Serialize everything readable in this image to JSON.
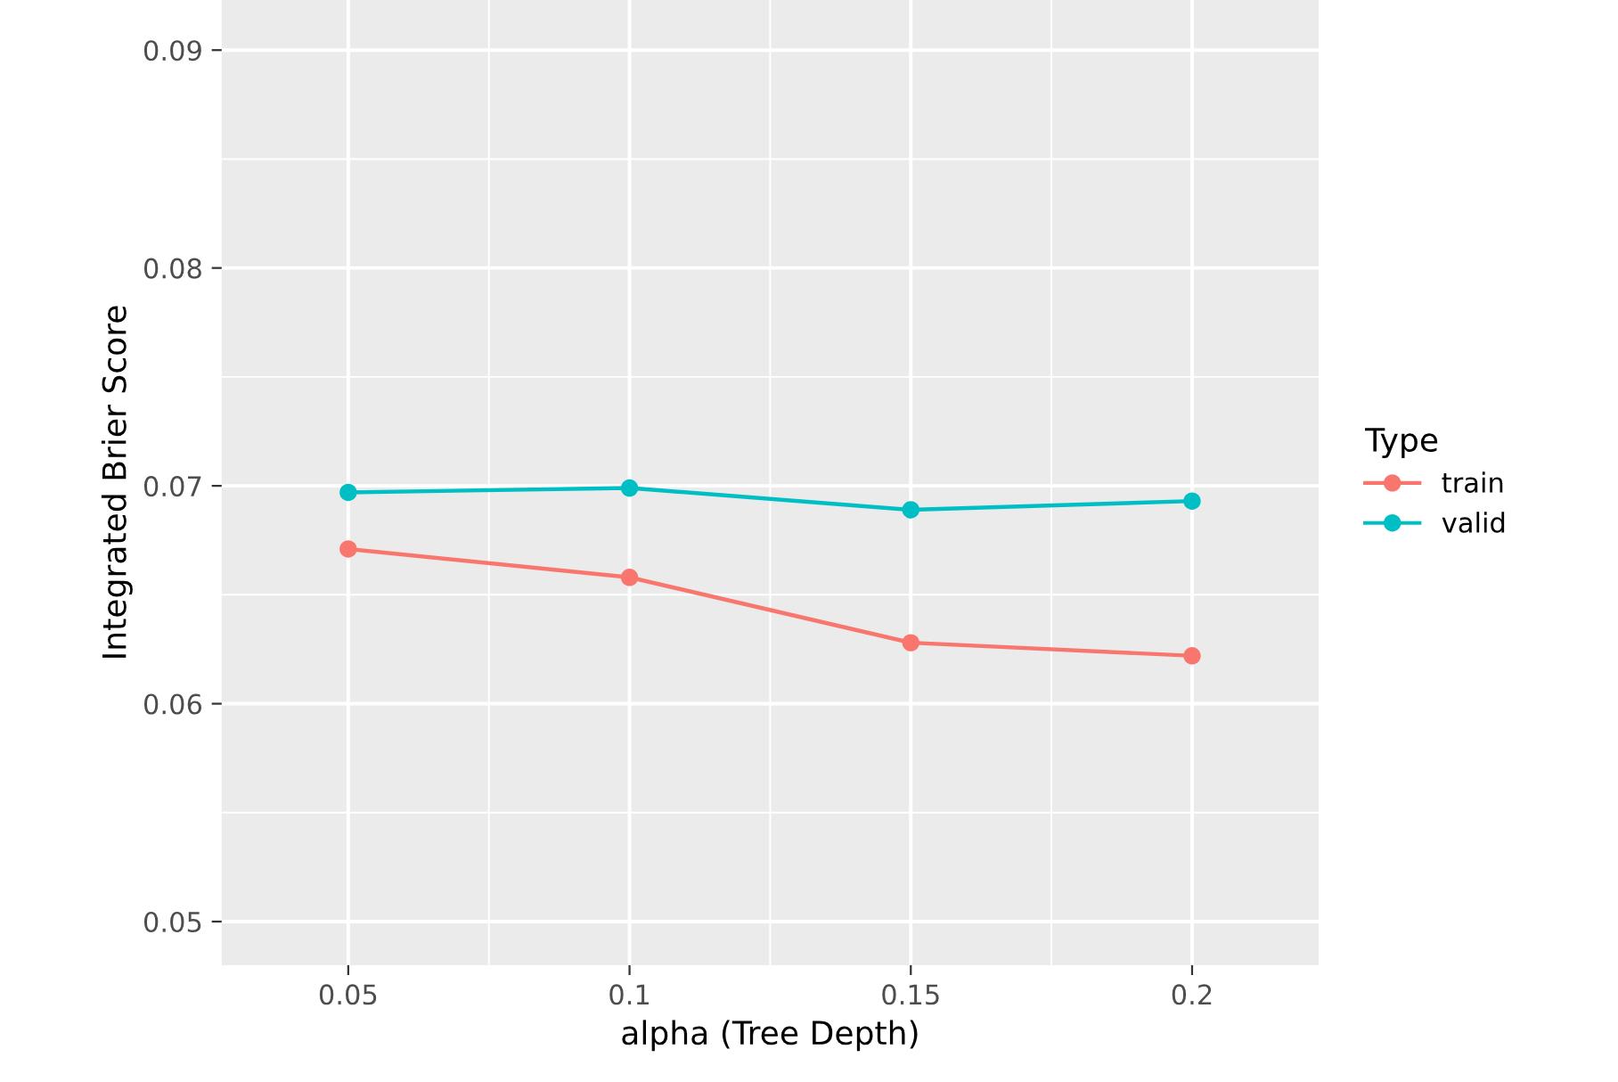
{
  "chart_data": {
    "type": "line",
    "x": [
      0.05,
      0.1,
      0.15,
      0.2
    ],
    "xlabel": "alpha (Tree Depth)",
    "ylabel": "Integrated Brier Score",
    "legend_title": "Type",
    "series": [
      {
        "name": "train",
        "color": "#f8766d",
        "values": [
          0.0671,
          0.0658,
          0.0628,
          0.0622
        ]
      },
      {
        "name": "valid",
        "color": "#00bfc4",
        "values": [
          0.0697,
          0.0699,
          0.0689,
          0.0693
        ]
      }
    ],
    "xlim": [
      0.0275,
      0.2225
    ],
    "xticks": [
      0.05,
      0.1,
      0.15,
      0.2
    ],
    "ylim": [
      0.048,
      0.0923
    ],
    "yticks": [
      0.05,
      0.06,
      0.07,
      0.08,
      0.09
    ],
    "grid": true,
    "legend": "right",
    "marker": "circle",
    "line_style": "solid"
  }
}
